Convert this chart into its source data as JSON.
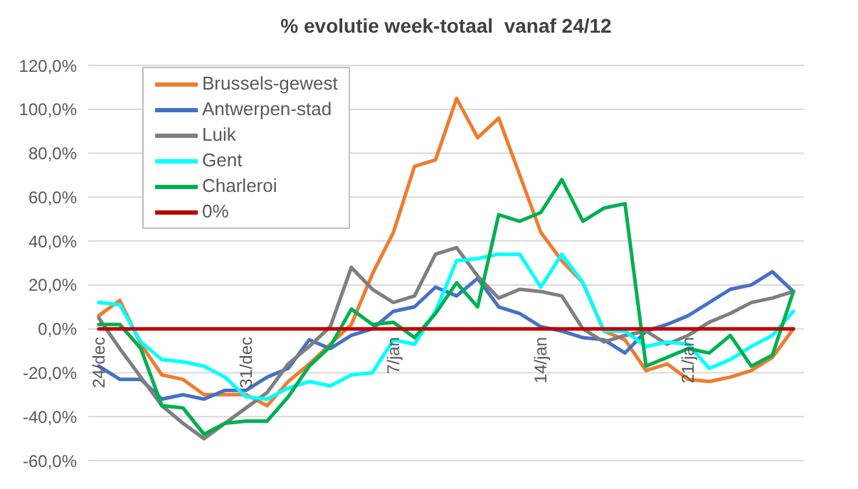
{
  "chart_data": {
    "type": "line",
    "title": "% evolutie week-totaal  vanaf 24/12",
    "categories": [
      "24/dec",
      null,
      null,
      null,
      null,
      null,
      null,
      "31/dec",
      null,
      null,
      null,
      null,
      null,
      null,
      "7/jan",
      null,
      null,
      null,
      null,
      null,
      null,
      "14/jan",
      null,
      null,
      null,
      null,
      null,
      null,
      "21/jan",
      null,
      null,
      null,
      null,
      null
    ],
    "series": [
      {
        "name": "Brussels-gewest",
        "color": "#ed7d31",
        "values": [
          6,
          13,
          -7,
          -21,
          -23,
          -30,
          -30,
          -30,
          -35,
          -24,
          -16,
          -7,
          2,
          25,
          44,
          74,
          77,
          105,
          87,
          96,
          70,
          44,
          31,
          21,
          -1,
          -5,
          -19,
          -16,
          -23,
          -24,
          -22,
          -19,
          -13,
          0
        ]
      },
      {
        "name": "Antwerpen-stad",
        "color": "#4472c4",
        "values": [
          -17,
          -23,
          -23,
          -32,
          -30,
          -32,
          -28,
          -28,
          -22,
          -18,
          -5,
          -9,
          -3,
          0,
          8,
          10,
          19,
          15,
          23,
          10,
          7,
          1,
          -1,
          -4,
          -5,
          -11,
          -1,
          2,
          6,
          12,
          18,
          20,
          26,
          17
        ]
      },
      {
        "name": "Luik",
        "color": "#7f7f7f",
        "values": [
          5,
          -9,
          -22,
          -35,
          -43,
          -50,
          -43,
          -36,
          -29,
          -16,
          -8,
          1,
          28,
          18,
          12,
          15,
          34,
          37,
          24,
          14,
          18,
          17,
          15,
          0,
          -6,
          -3,
          -1,
          -7,
          -3,
          3,
          7,
          12,
          14,
          17
        ]
      },
      {
        "name": "Gent",
        "color": "#00ffff",
        "values": [
          12,
          11,
          -6,
          -14,
          -15,
          -17,
          -22,
          -31,
          -32,
          -27,
          -24,
          -26,
          -21,
          -20,
          -5,
          -7,
          8,
          31,
          32,
          34,
          34,
          19,
          34,
          21,
          -1,
          -1,
          -8,
          -6,
          -7,
          -18,
          -14,
          -8,
          -3,
          8
        ]
      },
      {
        "name": "Charleroi",
        "color": "#00b050",
        "values": [
          2,
          2,
          -9,
          -35,
          -36,
          -48,
          -43,
          -42,
          -42,
          -31,
          -17,
          -8,
          9,
          2,
          3,
          -4,
          7,
          21,
          10,
          52,
          49,
          53,
          68,
          49,
          55,
          57,
          -17,
          -13,
          -9,
          -11,
          -3,
          -17,
          -12,
          17
        ]
      },
      {
        "name": "0%",
        "color": "#c00000",
        "values": [
          0,
          0,
          0,
          0,
          0,
          0,
          0,
          0,
          0,
          0,
          0,
          0,
          0,
          0,
          0,
          0,
          0,
          0,
          0,
          0,
          0,
          0,
          0,
          0,
          0,
          0,
          0,
          0,
          0,
          0,
          0,
          0,
          0,
          0
        ]
      }
    ],
    "ylim": [
      -60,
      120
    ],
    "yticks": [
      {
        "value": -60,
        "label": "-60,0%"
      },
      {
        "value": -40,
        "label": "-40,0%"
      },
      {
        "value": -20,
        "label": "-20,0%"
      },
      {
        "value": 0,
        "label": "0,0%"
      },
      {
        "value": 20,
        "label": "20,0%"
      },
      {
        "value": 40,
        "label": "40,0%"
      },
      {
        "value": 60,
        "label": "60,0%"
      },
      {
        "value": 80,
        "label": "80,0%"
      },
      {
        "value": 100,
        "label": "100,0%"
      },
      {
        "value": 120,
        "label": "120,0%"
      }
    ],
    "grid": "y",
    "legend": "top left",
    "marker": "none"
  }
}
